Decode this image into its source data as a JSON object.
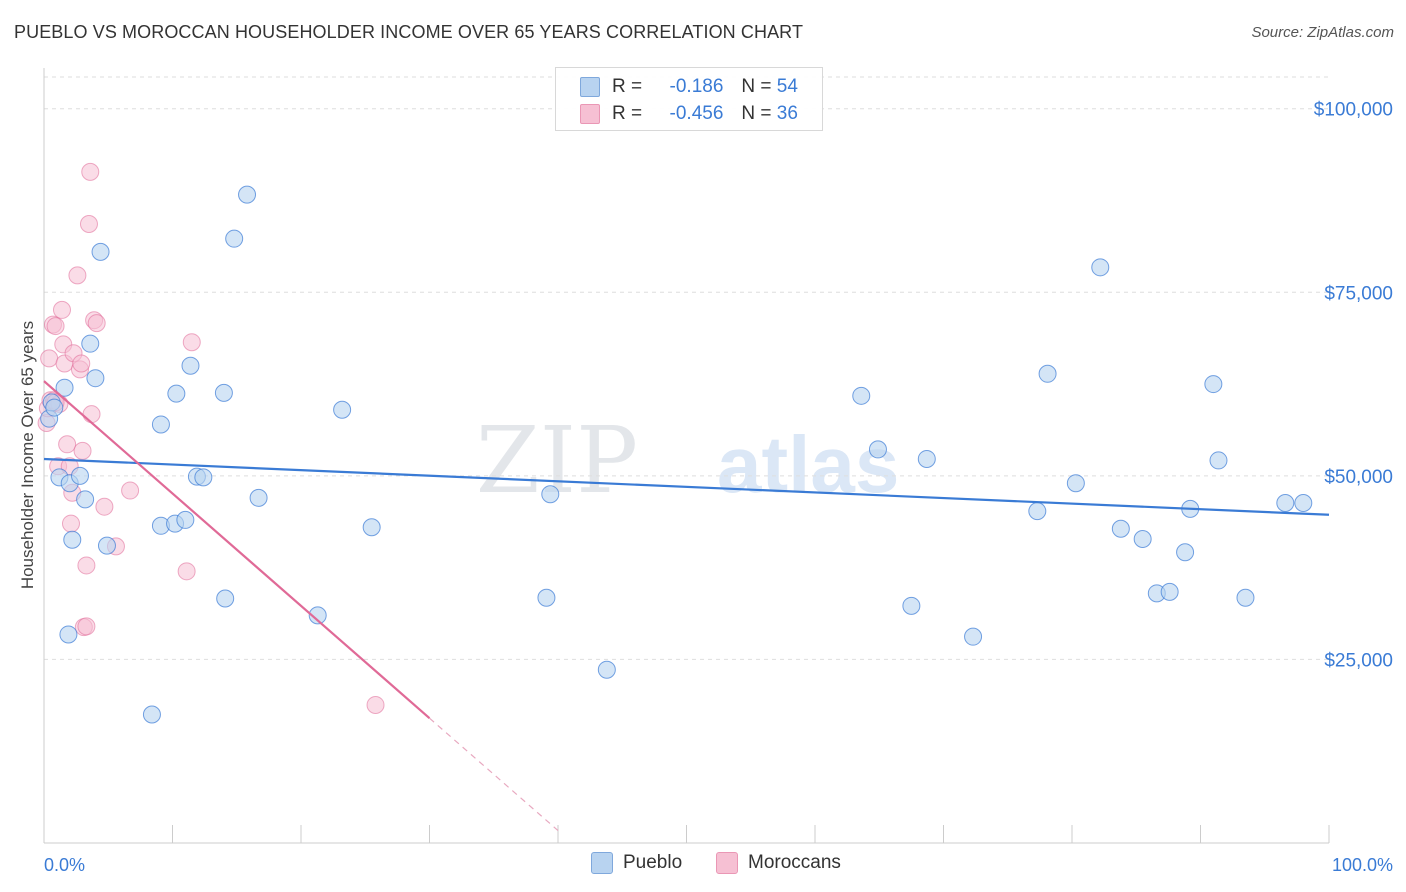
{
  "header": {
    "title": "PUEBLO VS MOROCCAN HOUSEHOLDER INCOME OVER 65 YEARS CORRELATION CHART",
    "source": "Source: ZipAtlas.com"
  },
  "colors": {
    "blue": "#3a7bd5",
    "blue_fill": "#b8d3f0",
    "pink": "#e06a97",
    "pink_fill": "#f6c0d3"
  },
  "legend": {
    "rows": [
      {
        "r_label": "R =",
        "r_value": "-0.186",
        "n_label": "N =",
        "n_value": "54"
      },
      {
        "r_label": "R =",
        "r_value": "-0.456",
        "n_label": "N =",
        "n_value": "36"
      }
    ]
  },
  "bottom_legend": {
    "items": [
      "Pueblo",
      "Moroccans"
    ]
  },
  "watermark": {
    "zip": "ZIP",
    "atlas": "atlas"
  },
  "chart_data": {
    "type": "scatter",
    "title": "PUEBLO VS MOROCCAN HOUSEHOLDER INCOME OVER 65 YEARS CORRELATION CHART",
    "xlabel": "",
    "ylabel": "Householder Income Over 65 years",
    "xlim": [
      0,
      100
    ],
    "ylim": [
      0,
      105000
    ],
    "x_tick_labels": [
      "0.0%",
      "100.0%"
    ],
    "y_ticks": [
      25000,
      50000,
      75000,
      100000
    ],
    "y_tick_labels": [
      "$25,000",
      "$50,000",
      "$75,000",
      "$100,000"
    ],
    "series": [
      {
        "name": "Pueblo",
        "r": -0.186,
        "n": 54,
        "trend": {
          "x": [
            0,
            100
          ],
          "y": [
            52300,
            44700
          ]
        },
        "points": [
          [
            0.4,
            57800
          ],
          [
            0.6,
            60000
          ],
          [
            0.8,
            59300
          ],
          [
            1.2,
            49800
          ],
          [
            1.6,
            62000
          ],
          [
            1.9,
            28400
          ],
          [
            2.0,
            49000
          ],
          [
            2.2,
            41300
          ],
          [
            2.8,
            50000
          ],
          [
            3.2,
            46800
          ],
          [
            3.6,
            68000
          ],
          [
            4.0,
            63300
          ],
          [
            4.4,
            80500
          ],
          [
            4.9,
            40500
          ],
          [
            8.4,
            17500
          ],
          [
            9.1,
            57000
          ],
          [
            9.1,
            43200
          ],
          [
            10.2,
            43500
          ],
          [
            10.3,
            61200
          ],
          [
            11.0,
            44000
          ],
          [
            11.4,
            65000
          ],
          [
            11.9,
            49900
          ],
          [
            12.4,
            49800
          ],
          [
            14.0,
            61300
          ],
          [
            14.1,
            33300
          ],
          [
            14.8,
            82300
          ],
          [
            15.8,
            88300
          ],
          [
            16.7,
            47000
          ],
          [
            21.3,
            31000
          ],
          [
            23.2,
            59000
          ],
          [
            25.5,
            43000
          ],
          [
            39.1,
            33400
          ],
          [
            39.4,
            47500
          ],
          [
            43.8,
            23600
          ],
          [
            63.6,
            60900
          ],
          [
            64.9,
            53600
          ],
          [
            67.5,
            32300
          ],
          [
            68.7,
            52300
          ],
          [
            72.3,
            28100
          ],
          [
            77.3,
            45200
          ],
          [
            78.1,
            63900
          ],
          [
            80.3,
            49000
          ],
          [
            82.2,
            78400
          ],
          [
            83.8,
            42800
          ],
          [
            85.5,
            41400
          ],
          [
            86.6,
            34000
          ],
          [
            87.6,
            34200
          ],
          [
            88.8,
            39600
          ],
          [
            89.2,
            45500
          ],
          [
            91.0,
            62500
          ],
          [
            91.4,
            52100
          ],
          [
            93.5,
            33400
          ],
          [
            96.6,
            46300
          ],
          [
            98.0,
            46300
          ]
        ]
      },
      {
        "name": "Moroccans",
        "r": -0.456,
        "n": 36,
        "trend": {
          "x": [
            0,
            30
          ],
          "y": [
            62900,
            17000
          ]
        },
        "trend_dashed": {
          "x": [
            30,
            40
          ],
          "y": [
            17000,
            1700
          ]
        },
        "points": [
          [
            0.2,
            57200
          ],
          [
            0.3,
            59200
          ],
          [
            0.4,
            66000
          ],
          [
            0.5,
            60300
          ],
          [
            0.7,
            70600
          ],
          [
            0.8,
            60300
          ],
          [
            0.9,
            70400
          ],
          [
            1.1,
            51300
          ],
          [
            1.2,
            59800
          ],
          [
            1.4,
            72600
          ],
          [
            1.5,
            67900
          ],
          [
            1.6,
            65300
          ],
          [
            1.8,
            54300
          ],
          [
            2.0,
            51300
          ],
          [
            2.1,
            43500
          ],
          [
            2.2,
            47700
          ],
          [
            2.3,
            66700
          ],
          [
            2.6,
            77300
          ],
          [
            2.8,
            64500
          ],
          [
            2.9,
            65300
          ],
          [
            3.0,
            53400
          ],
          [
            3.1,
            29400
          ],
          [
            3.3,
            29500
          ],
          [
            3.3,
            37800
          ],
          [
            3.5,
            84300
          ],
          [
            3.6,
            91400
          ],
          [
            3.7,
            58400
          ],
          [
            3.9,
            71200
          ],
          [
            4.1,
            70800
          ],
          [
            4.7,
            45800
          ],
          [
            5.6,
            40400
          ],
          [
            6.7,
            48000
          ],
          [
            11.1,
            37000
          ],
          [
            11.5,
            68200
          ],
          [
            25.8,
            18800
          ],
          [
            0.9,
            60000
          ]
        ]
      }
    ]
  }
}
